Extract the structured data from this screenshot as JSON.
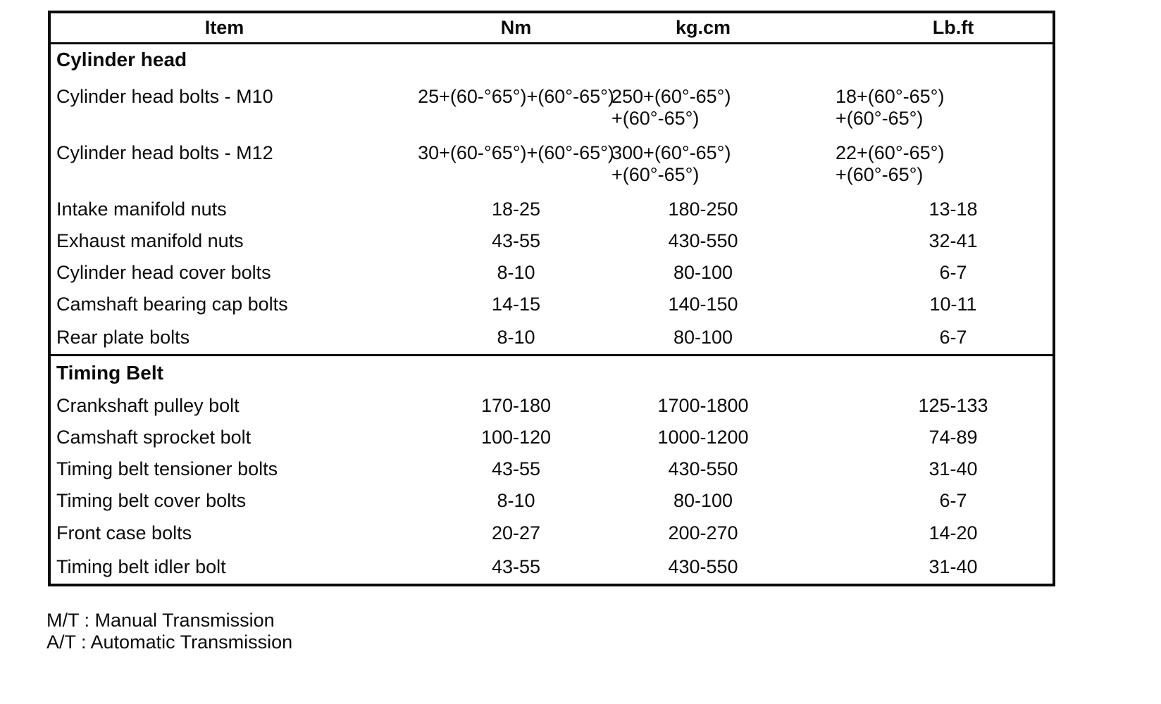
{
  "table": {
    "headers": {
      "item": "Item",
      "nm": "Nm",
      "kgcm": "kg.cm",
      "lbft": "Lb.ft"
    },
    "sections": [
      {
        "title": "Cylinder head",
        "rows": [
          {
            "item": "Cylinder head bolts - M10",
            "nm": [
              "25+(60-°65°)+(60°-65°)"
            ],
            "kgcm": [
              "250+(60°-65°)",
              "+(60°-65°)"
            ],
            "lbft": [
              "18+(60°-65°)",
              "+(60°-65°)"
            ]
          },
          {
            "item": "Cylinder head bolts - M12",
            "nm": [
              "30+(60-°65°)+(60°-65°)"
            ],
            "kgcm": [
              "300+(60°-65°)",
              "+(60°-65°)"
            ],
            "lbft": [
              "22+(60°-65°)",
              "+(60°-65°)"
            ]
          },
          {
            "item": "Intake manifold nuts",
            "nm": [
              "18-25"
            ],
            "kgcm": [
              "180-250"
            ],
            "lbft": [
              "13-18"
            ]
          },
          {
            "item": "Exhaust manifold nuts",
            "nm": [
              "43-55"
            ],
            "kgcm": [
              "430-550"
            ],
            "lbft": [
              "32-41"
            ]
          },
          {
            "item": "Cylinder head cover bolts",
            "nm": [
              "8-10"
            ],
            "kgcm": [
              "80-100"
            ],
            "lbft": [
              "6-7"
            ]
          },
          {
            "item": "Camshaft bearing cap bolts",
            "nm": [
              "14-15"
            ],
            "kgcm": [
              "140-150"
            ],
            "lbft": [
              "10-11"
            ]
          },
          {
            "item": "Rear plate bolts",
            "nm": [
              "8-10"
            ],
            "kgcm": [
              "80-100"
            ],
            "lbft": [
              "6-7"
            ]
          }
        ]
      },
      {
        "title": "Timing Belt",
        "rows": [
          {
            "item": "Crankshaft pulley bolt",
            "nm": [
              "170-180"
            ],
            "kgcm": [
              "1700-1800"
            ],
            "lbft": [
              "125-133"
            ]
          },
          {
            "item": "Camshaft sprocket bolt",
            "nm": [
              "100-120"
            ],
            "kgcm": [
              "1000-1200"
            ],
            "lbft": [
              "74-89"
            ]
          },
          {
            "item": "Timing belt tensioner bolts",
            "nm": [
              "43-55"
            ],
            "kgcm": [
              "430-550"
            ],
            "lbft": [
              "31-40"
            ]
          },
          {
            "item": "Timing belt cover bolts",
            "nm": [
              "8-10"
            ],
            "kgcm": [
              "80-100"
            ],
            "lbft": [
              "6-7"
            ]
          },
          {
            "item": "Front case bolts",
            "nm": [
              "20-27"
            ],
            "kgcm": [
              "200-270"
            ],
            "lbft": [
              "14-20"
            ]
          },
          {
            "item": "Timing belt idler bolt",
            "nm": [
              "43-55"
            ],
            "kgcm": [
              "430-550"
            ],
            "lbft": [
              "31-40"
            ]
          }
        ]
      }
    ]
  },
  "footnotes": {
    "mt": "M/T : Manual Transmission",
    "at": "A/T : Automatic Transmission"
  }
}
